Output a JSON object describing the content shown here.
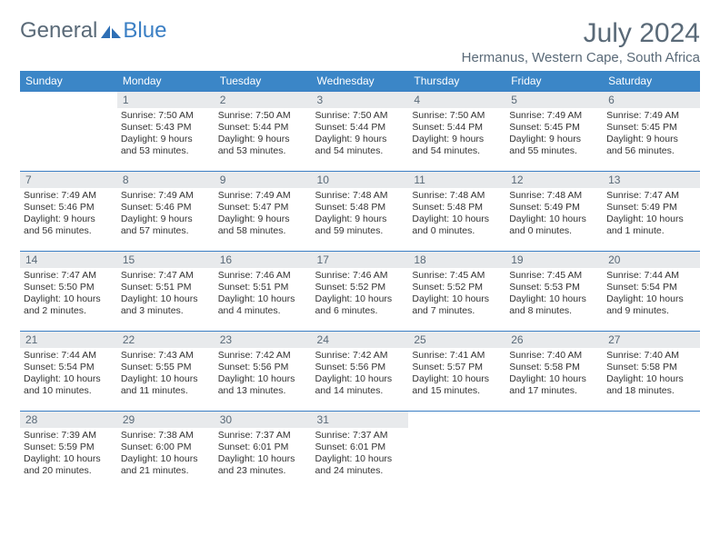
{
  "brand": {
    "word1": "General",
    "word2": "Blue"
  },
  "title": "July 2024",
  "location": "Hermanus, Western Cape, South Africa",
  "colors": {
    "header_bg": "#3b86c7",
    "header_text": "#ffffff",
    "daynum_bg": "#e8eaec",
    "logo_gray": "#5a6a78",
    "logo_blue": "#3b7fc4",
    "cell_border": "#3b7fc4"
  },
  "day_names": [
    "Sunday",
    "Monday",
    "Tuesday",
    "Wednesday",
    "Thursday",
    "Friday",
    "Saturday"
  ],
  "weeks": [
    [
      {
        "n": "",
        "sr": "",
        "ss": "",
        "dl": "",
        "empty": true
      },
      {
        "n": "1",
        "sr": "Sunrise: 7:50 AM",
        "ss": "Sunset: 5:43 PM",
        "dl": "Daylight: 9 hours and 53 minutes."
      },
      {
        "n": "2",
        "sr": "Sunrise: 7:50 AM",
        "ss": "Sunset: 5:44 PM",
        "dl": "Daylight: 9 hours and 53 minutes."
      },
      {
        "n": "3",
        "sr": "Sunrise: 7:50 AM",
        "ss": "Sunset: 5:44 PM",
        "dl": "Daylight: 9 hours and 54 minutes."
      },
      {
        "n": "4",
        "sr": "Sunrise: 7:50 AM",
        "ss": "Sunset: 5:44 PM",
        "dl": "Daylight: 9 hours and 54 minutes."
      },
      {
        "n": "5",
        "sr": "Sunrise: 7:49 AM",
        "ss": "Sunset: 5:45 PM",
        "dl": "Daylight: 9 hours and 55 minutes."
      },
      {
        "n": "6",
        "sr": "Sunrise: 7:49 AM",
        "ss": "Sunset: 5:45 PM",
        "dl": "Daylight: 9 hours and 56 minutes."
      }
    ],
    [
      {
        "n": "7",
        "sr": "Sunrise: 7:49 AM",
        "ss": "Sunset: 5:46 PM",
        "dl": "Daylight: 9 hours and 56 minutes."
      },
      {
        "n": "8",
        "sr": "Sunrise: 7:49 AM",
        "ss": "Sunset: 5:46 PM",
        "dl": "Daylight: 9 hours and 57 minutes."
      },
      {
        "n": "9",
        "sr": "Sunrise: 7:49 AM",
        "ss": "Sunset: 5:47 PM",
        "dl": "Daylight: 9 hours and 58 minutes."
      },
      {
        "n": "10",
        "sr": "Sunrise: 7:48 AM",
        "ss": "Sunset: 5:48 PM",
        "dl": "Daylight: 9 hours and 59 minutes."
      },
      {
        "n": "11",
        "sr": "Sunrise: 7:48 AM",
        "ss": "Sunset: 5:48 PM",
        "dl": "Daylight: 10 hours and 0 minutes."
      },
      {
        "n": "12",
        "sr": "Sunrise: 7:48 AM",
        "ss": "Sunset: 5:49 PM",
        "dl": "Daylight: 10 hours and 0 minutes."
      },
      {
        "n": "13",
        "sr": "Sunrise: 7:47 AM",
        "ss": "Sunset: 5:49 PM",
        "dl": "Daylight: 10 hours and 1 minute."
      }
    ],
    [
      {
        "n": "14",
        "sr": "Sunrise: 7:47 AM",
        "ss": "Sunset: 5:50 PM",
        "dl": "Daylight: 10 hours and 2 minutes."
      },
      {
        "n": "15",
        "sr": "Sunrise: 7:47 AM",
        "ss": "Sunset: 5:51 PM",
        "dl": "Daylight: 10 hours and 3 minutes."
      },
      {
        "n": "16",
        "sr": "Sunrise: 7:46 AM",
        "ss": "Sunset: 5:51 PM",
        "dl": "Daylight: 10 hours and 4 minutes."
      },
      {
        "n": "17",
        "sr": "Sunrise: 7:46 AM",
        "ss": "Sunset: 5:52 PM",
        "dl": "Daylight: 10 hours and 6 minutes."
      },
      {
        "n": "18",
        "sr": "Sunrise: 7:45 AM",
        "ss": "Sunset: 5:52 PM",
        "dl": "Daylight: 10 hours and 7 minutes."
      },
      {
        "n": "19",
        "sr": "Sunrise: 7:45 AM",
        "ss": "Sunset: 5:53 PM",
        "dl": "Daylight: 10 hours and 8 minutes."
      },
      {
        "n": "20",
        "sr": "Sunrise: 7:44 AM",
        "ss": "Sunset: 5:54 PM",
        "dl": "Daylight: 10 hours and 9 minutes."
      }
    ],
    [
      {
        "n": "21",
        "sr": "Sunrise: 7:44 AM",
        "ss": "Sunset: 5:54 PM",
        "dl": "Daylight: 10 hours and 10 minutes."
      },
      {
        "n": "22",
        "sr": "Sunrise: 7:43 AM",
        "ss": "Sunset: 5:55 PM",
        "dl": "Daylight: 10 hours and 11 minutes."
      },
      {
        "n": "23",
        "sr": "Sunrise: 7:42 AM",
        "ss": "Sunset: 5:56 PM",
        "dl": "Daylight: 10 hours and 13 minutes."
      },
      {
        "n": "24",
        "sr": "Sunrise: 7:42 AM",
        "ss": "Sunset: 5:56 PM",
        "dl": "Daylight: 10 hours and 14 minutes."
      },
      {
        "n": "25",
        "sr": "Sunrise: 7:41 AM",
        "ss": "Sunset: 5:57 PM",
        "dl": "Daylight: 10 hours and 15 minutes."
      },
      {
        "n": "26",
        "sr": "Sunrise: 7:40 AM",
        "ss": "Sunset: 5:58 PM",
        "dl": "Daylight: 10 hours and 17 minutes."
      },
      {
        "n": "27",
        "sr": "Sunrise: 7:40 AM",
        "ss": "Sunset: 5:58 PM",
        "dl": "Daylight: 10 hours and 18 minutes."
      }
    ],
    [
      {
        "n": "28",
        "sr": "Sunrise: 7:39 AM",
        "ss": "Sunset: 5:59 PM",
        "dl": "Daylight: 10 hours and 20 minutes."
      },
      {
        "n": "29",
        "sr": "Sunrise: 7:38 AM",
        "ss": "Sunset: 6:00 PM",
        "dl": "Daylight: 10 hours and 21 minutes."
      },
      {
        "n": "30",
        "sr": "Sunrise: 7:37 AM",
        "ss": "Sunset: 6:01 PM",
        "dl": "Daylight: 10 hours and 23 minutes."
      },
      {
        "n": "31",
        "sr": "Sunrise: 7:37 AM",
        "ss": "Sunset: 6:01 PM",
        "dl": "Daylight: 10 hours and 24 minutes."
      },
      {
        "n": "",
        "sr": "",
        "ss": "",
        "dl": "",
        "empty": true
      },
      {
        "n": "",
        "sr": "",
        "ss": "",
        "dl": "",
        "empty": true
      },
      {
        "n": "",
        "sr": "",
        "ss": "",
        "dl": "",
        "empty": true
      }
    ]
  ]
}
